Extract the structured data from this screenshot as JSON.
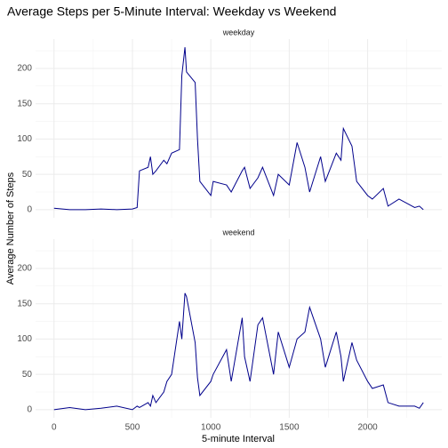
{
  "chart_data": {
    "type": "line",
    "title": "Average Steps per 5-Minute Interval: Weekday vs Weekend",
    "x_label": "5-minute Interval",
    "y_label": "Average Number of Steps",
    "x": [
      0,
      100,
      200,
      300,
      400,
      500,
      530,
      545,
      600,
      615,
      630,
      650,
      700,
      720,
      750,
      800,
      815,
      835,
      845,
      900,
      915,
      930,
      1000,
      1015,
      1100,
      1130,
      1200,
      1215,
      1250,
      1300,
      1330,
      1400,
      1430,
      1500,
      1550,
      1600,
      1630,
      1700,
      1730,
      1800,
      1830,
      1845,
      1900,
      1930,
      2000,
      2030,
      2100,
      2130,
      2200,
      2300,
      2330,
      2355
    ],
    "series": [
      {
        "name": "weekday",
        "color": "#00008b",
        "values": [
          2,
          0,
          0,
          1,
          0,
          1,
          3,
          55,
          60,
          75,
          50,
          55,
          70,
          65,
          80,
          85,
          190,
          230,
          195,
          180,
          100,
          40,
          20,
          40,
          35,
          25,
          55,
          60,
          30,
          45,
          60,
          20,
          50,
          35,
          95,
          60,
          25,
          75,
          40,
          80,
          70,
          115,
          90,
          40,
          20,
          15,
          30,
          5,
          15,
          3,
          5,
          0
        ]
      },
      {
        "name": "weekend",
        "color": "#00008b",
        "values": [
          0,
          3,
          0,
          2,
          5,
          0,
          5,
          3,
          10,
          5,
          20,
          10,
          25,
          40,
          50,
          125,
          100,
          165,
          160,
          95,
          45,
          20,
          40,
          50,
          85,
          40,
          130,
          75,
          40,
          120,
          130,
          50,
          110,
          60,
          100,
          110,
          145,
          100,
          60,
          110,
          75,
          40,
          95,
          70,
          40,
          30,
          35,
          10,
          5,
          5,
          2,
          10
        ]
      }
    ],
    "xlim": [
      -117.75,
      2472.75
    ],
    "xticks": [
      0,
      500,
      1000,
      1500,
      2000
    ],
    "xminor": [
      250,
      750,
      1250,
      1750,
      2250
    ],
    "ylim": [
      -11.5,
      241.5
    ],
    "yticks": [
      0,
      50,
      100,
      150,
      200
    ],
    "yminor": [
      25,
      75,
      125,
      175,
      225
    ],
    "grid": true
  }
}
